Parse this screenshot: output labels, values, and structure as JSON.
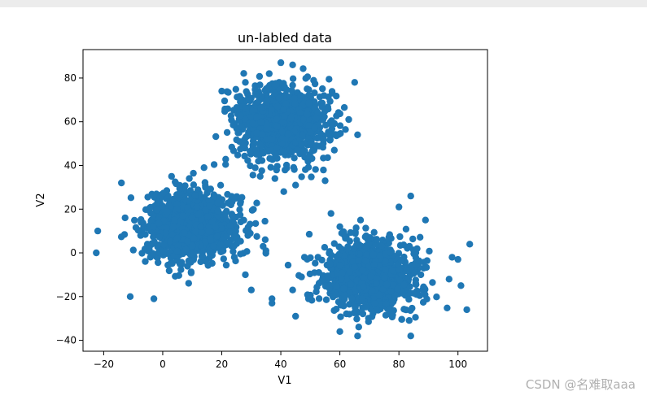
{
  "chart_data": {
    "type": "scatter",
    "title": "un-labled data",
    "xlabel": "V1",
    "ylabel": "V2",
    "xlim": [
      -27,
      110
    ],
    "ylim": [
      -45,
      93
    ],
    "xticks": [
      -20,
      0,
      20,
      40,
      60,
      80,
      100
    ],
    "yticks": [
      -40,
      -20,
      0,
      20,
      40,
      60,
      80
    ],
    "xtick_labels": [
      "−20",
      "0",
      "20",
      "40",
      "60",
      "80",
      "100"
    ],
    "ytick_labels": [
      "−40",
      "−20",
      "0",
      "20",
      "40",
      "60",
      "80"
    ],
    "grid": false,
    "color": "#1f77b4",
    "series": [
      {
        "clusters": [
          {
            "center": [
              10,
              12
            ],
            "spread": [
              8,
              8
            ],
            "count": 1000
          },
          {
            "center": [
              40,
              60
            ],
            "spread": [
              8,
              8
            ],
            "count": 1000
          },
          {
            "center": [
              70,
              -10
            ],
            "spread": [
              8,
              8
            ],
            "count": 1000
          }
        ],
        "outliers": [
          [
            -22,
            10
          ],
          [
            -22.5,
            0
          ],
          [
            -11,
            -20
          ],
          [
            -3,
            -21
          ],
          [
            -14,
            32
          ],
          [
            20,
            74
          ],
          [
            28,
            78
          ],
          [
            40,
            87
          ],
          [
            44,
            86
          ],
          [
            33,
            35
          ],
          [
            41,
            28
          ],
          [
            38,
            34
          ],
          [
            55,
            33
          ],
          [
            45,
            31
          ],
          [
            63,
            61
          ],
          [
            66,
            54
          ],
          [
            65,
            78
          ],
          [
            29,
            10
          ],
          [
            34,
            3
          ],
          [
            28,
            -10
          ],
          [
            30,
            -17
          ],
          [
            37,
            -21
          ],
          [
            37,
            -23
          ],
          [
            44,
            -17
          ],
          [
            47,
            -11
          ],
          [
            57,
            18
          ],
          [
            60,
            12
          ],
          [
            67,
            15
          ],
          [
            84,
            26
          ],
          [
            89,
            15
          ],
          [
            98,
            -2
          ],
          [
            100,
            -3
          ],
          [
            104,
            4
          ],
          [
            103,
            -26
          ],
          [
            97,
            -12
          ],
          [
            101,
            -15
          ],
          [
            60,
            -36
          ],
          [
            66,
            -38
          ],
          [
            84,
            -38
          ],
          [
            45,
            -29
          ],
          [
            9,
            34
          ],
          [
            14,
            39
          ],
          [
            3,
            35
          ],
          [
            48,
            -2
          ],
          [
            50,
            -21
          ],
          [
            80,
            21
          ]
        ],
        "seed": 7
      }
    ]
  },
  "watermark": "CSDN @名难取aaa"
}
